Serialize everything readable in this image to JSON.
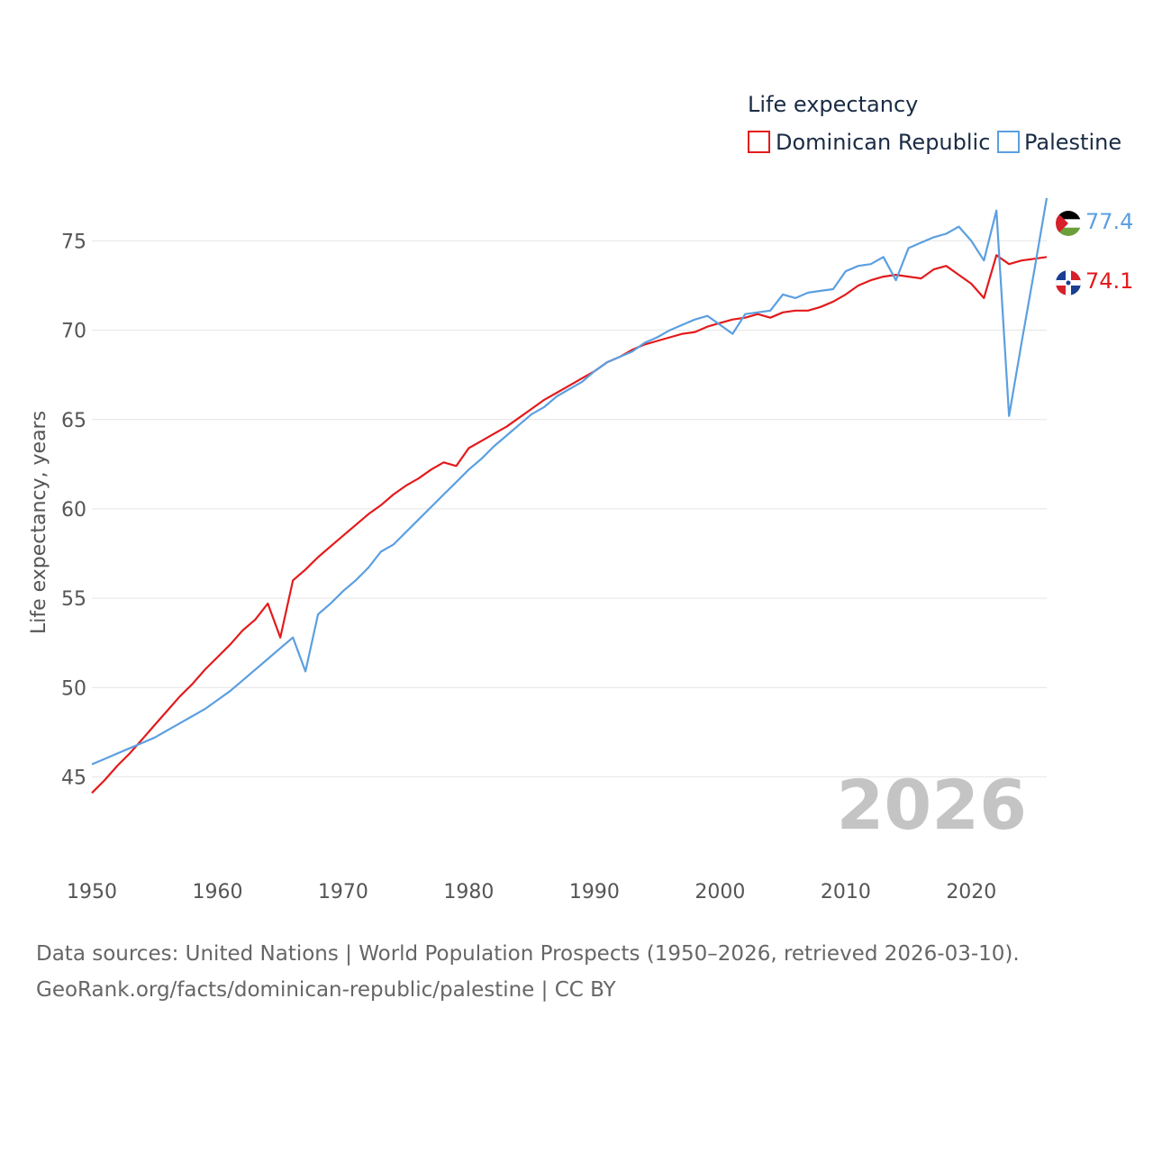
{
  "chart_data": {
    "type": "line",
    "title": "",
    "legend_title": "Life expectancy",
    "legend_position": "top-right",
    "ylabel": "Life expectancy, years",
    "xlabel": "",
    "xlim": [
      1950,
      2026
    ],
    "ylim": [
      42.5,
      78.5
    ],
    "x_ticks": [
      1950,
      1960,
      1970,
      1980,
      1990,
      2000,
      2010,
      2020
    ],
    "y_ticks": [
      45,
      50,
      55,
      60,
      65,
      70,
      75
    ],
    "grid": true,
    "current_year_label": "2026",
    "x": [
      1950,
      1951,
      1952,
      1953,
      1954,
      1955,
      1956,
      1957,
      1958,
      1959,
      1960,
      1961,
      1962,
      1963,
      1964,
      1965,
      1966,
      1967,
      1968,
      1969,
      1970,
      1971,
      1972,
      1973,
      1974,
      1975,
      1976,
      1977,
      1978,
      1979,
      1980,
      1981,
      1982,
      1983,
      1984,
      1985,
      1986,
      1987,
      1988,
      1989,
      1990,
      1991,
      1992,
      1993,
      1994,
      1995,
      1996,
      1997,
      1998,
      1999,
      2000,
      2001,
      2002,
      2003,
      2004,
      2005,
      2006,
      2007,
      2008,
      2009,
      2010,
      2011,
      2012,
      2013,
      2014,
      2015,
      2016,
      2017,
      2018,
      2019,
      2020,
      2021,
      2022,
      2023,
      2024,
      2025,
      2026
    ],
    "series": [
      {
        "name": "Dominican Republic",
        "color": "#e31a1c",
        "end_label": "74.1",
        "flag": "dominican-republic-flag-icon",
        "values": [
          44.1,
          44.8,
          45.6,
          46.3,
          47.1,
          47.9,
          48.7,
          49.5,
          50.2,
          51.0,
          51.7,
          52.4,
          53.2,
          53.8,
          54.7,
          52.8,
          56.0,
          56.6,
          57.3,
          57.9,
          58.5,
          59.1,
          59.7,
          60.2,
          60.8,
          61.3,
          61.7,
          62.2,
          62.6,
          62.4,
          63.4,
          63.8,
          64.2,
          64.6,
          65.1,
          65.6,
          66.1,
          66.5,
          66.9,
          67.3,
          67.7,
          68.2,
          68.5,
          68.9,
          69.2,
          69.4,
          69.6,
          69.8,
          69.9,
          70.2,
          70.4,
          70.6,
          70.7,
          70.9,
          70.7,
          71.0,
          71.1,
          71.1,
          71.3,
          71.6,
          72.0,
          72.5,
          72.8,
          73.0,
          73.1,
          73.0,
          72.9,
          73.4,
          73.6,
          73.1,
          72.6,
          71.8,
          74.2,
          73.7,
          73.9,
          74.0,
          74.1
        ]
      },
      {
        "name": "Palestine",
        "color": "#5b9fe0",
        "end_label": "77.4",
        "flag": "palestine-flag-icon",
        "values": [
          45.7,
          46.0,
          46.3,
          46.6,
          46.9,
          47.2,
          47.6,
          48.0,
          48.4,
          48.8,
          49.3,
          49.8,
          50.4,
          51.0,
          51.6,
          52.2,
          52.8,
          50.9,
          54.1,
          54.7,
          55.4,
          56.0,
          56.7,
          57.6,
          58.0,
          58.7,
          59.4,
          60.1,
          60.8,
          61.5,
          62.2,
          62.8,
          63.5,
          64.1,
          64.7,
          65.3,
          65.7,
          66.3,
          66.7,
          67.1,
          67.7,
          68.2,
          68.5,
          68.8,
          69.3,
          69.6,
          70.0,
          70.3,
          70.6,
          70.8,
          70.3,
          69.8,
          70.9,
          71.0,
          71.1,
          72.0,
          71.8,
          72.1,
          72.2,
          72.3,
          73.3,
          73.6,
          73.7,
          74.1,
          72.8,
          74.6,
          74.9,
          75.2,
          75.4,
          75.8,
          75.0,
          73.9,
          76.7,
          65.2,
          69.3,
          73.3,
          77.4
        ]
      }
    ]
  },
  "footer": {
    "sources": "Data sources: United Nations | World Population Prospects (1950–2026, retrieved 2026-03-10).",
    "attribution": "GeoRank.org/facts/dominican-republic/palestine | CC BY"
  }
}
